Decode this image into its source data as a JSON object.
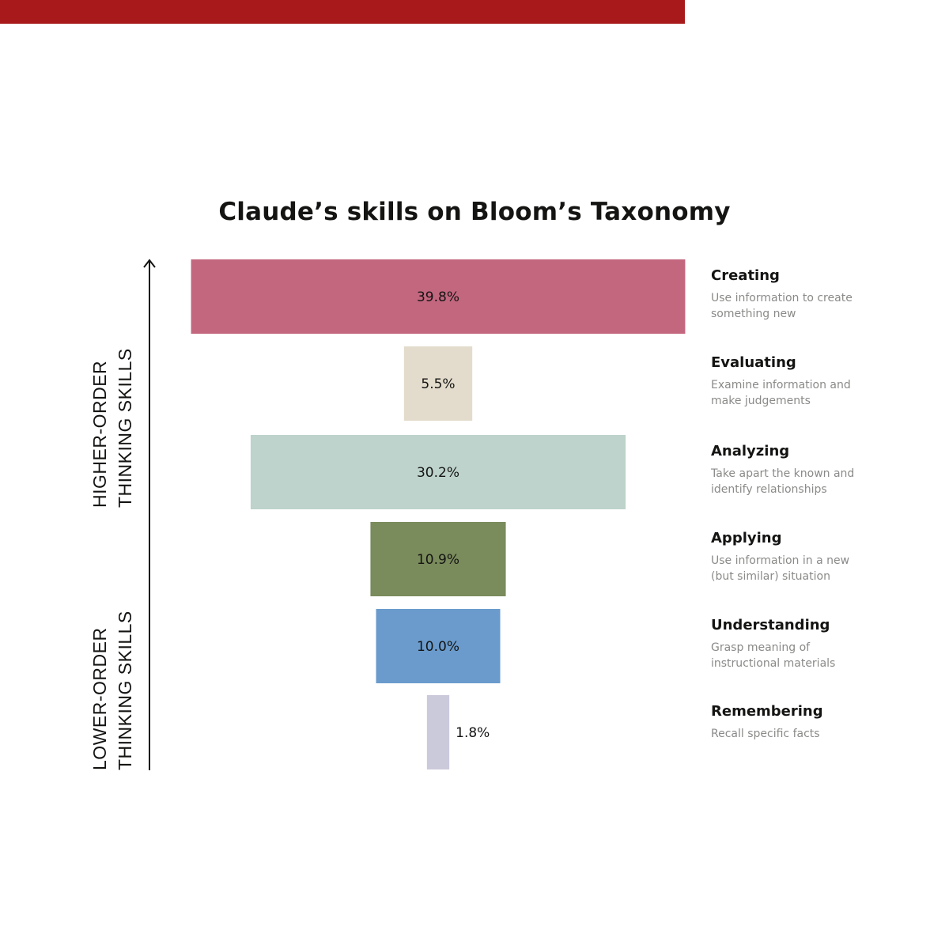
{
  "header": {
    "accent_color": "#a8191b"
  },
  "chart_data": {
    "type": "bar",
    "orientation": "horizontal-centered (funnel)",
    "title": "Claude’s skills on Bloom’s Taxonomy",
    "categories": [
      "Creating",
      "Evaluating",
      "Analyzing",
      "Applying",
      "Understanding",
      "Remembering"
    ],
    "values": [
      39.8,
      5.5,
      30.2,
      10.9,
      10.0,
      1.8
    ],
    "labels": [
      "39.8%",
      "5.5%",
      "30.2%",
      "10.9%",
      "10.0%",
      "1.8%"
    ],
    "colors": [
      "#c3677f",
      "#e3dccc",
      "#bdd3cb",
      "#7a8b5c",
      "#6a9bcc",
      "#cbcadb"
    ],
    "descriptions": [
      "Use information to create something new",
      "Examine information and make judgements",
      "Take apart the known and identify relationships",
      "Use information in a new (but similar) situation",
      "Grasp meaning of instructional materials",
      "Recall specific facts"
    ],
    "axis": {
      "direction": "up",
      "upper_label": [
        "HIGHER-ORDER",
        "THINKING SKILLS"
      ],
      "lower_label": [
        "LOWER-ORDER",
        "THINKING SKILLS"
      ]
    },
    "grid": false,
    "legend": "right"
  }
}
